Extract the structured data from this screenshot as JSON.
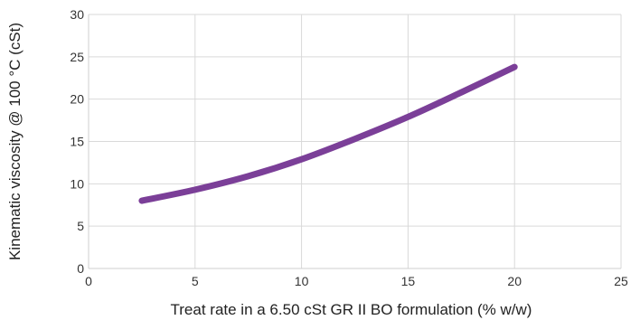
{
  "chart_data": {
    "type": "line",
    "xlabel": "Treat rate in a 6.50 cSt GR II BO formulation (% w/w)",
    "ylabel": "Kinematic viscosity @ 100 °C (cSt)",
    "xlim": [
      0,
      25
    ],
    "ylim": [
      0,
      30
    ],
    "x_ticks": [
      0,
      5,
      10,
      15,
      20,
      25
    ],
    "y_ticks": [
      0,
      5,
      10,
      15,
      20,
      25,
      30
    ],
    "grid": true,
    "series": [
      {
        "color": "#7b3f98",
        "x": [
          2.5,
          5,
          7.5,
          10,
          12.5,
          15,
          17.5,
          20
        ],
        "y": [
          8.0,
          9.3,
          10.9,
          12.9,
          15.3,
          17.9,
          20.8,
          23.8
        ]
      }
    ]
  }
}
